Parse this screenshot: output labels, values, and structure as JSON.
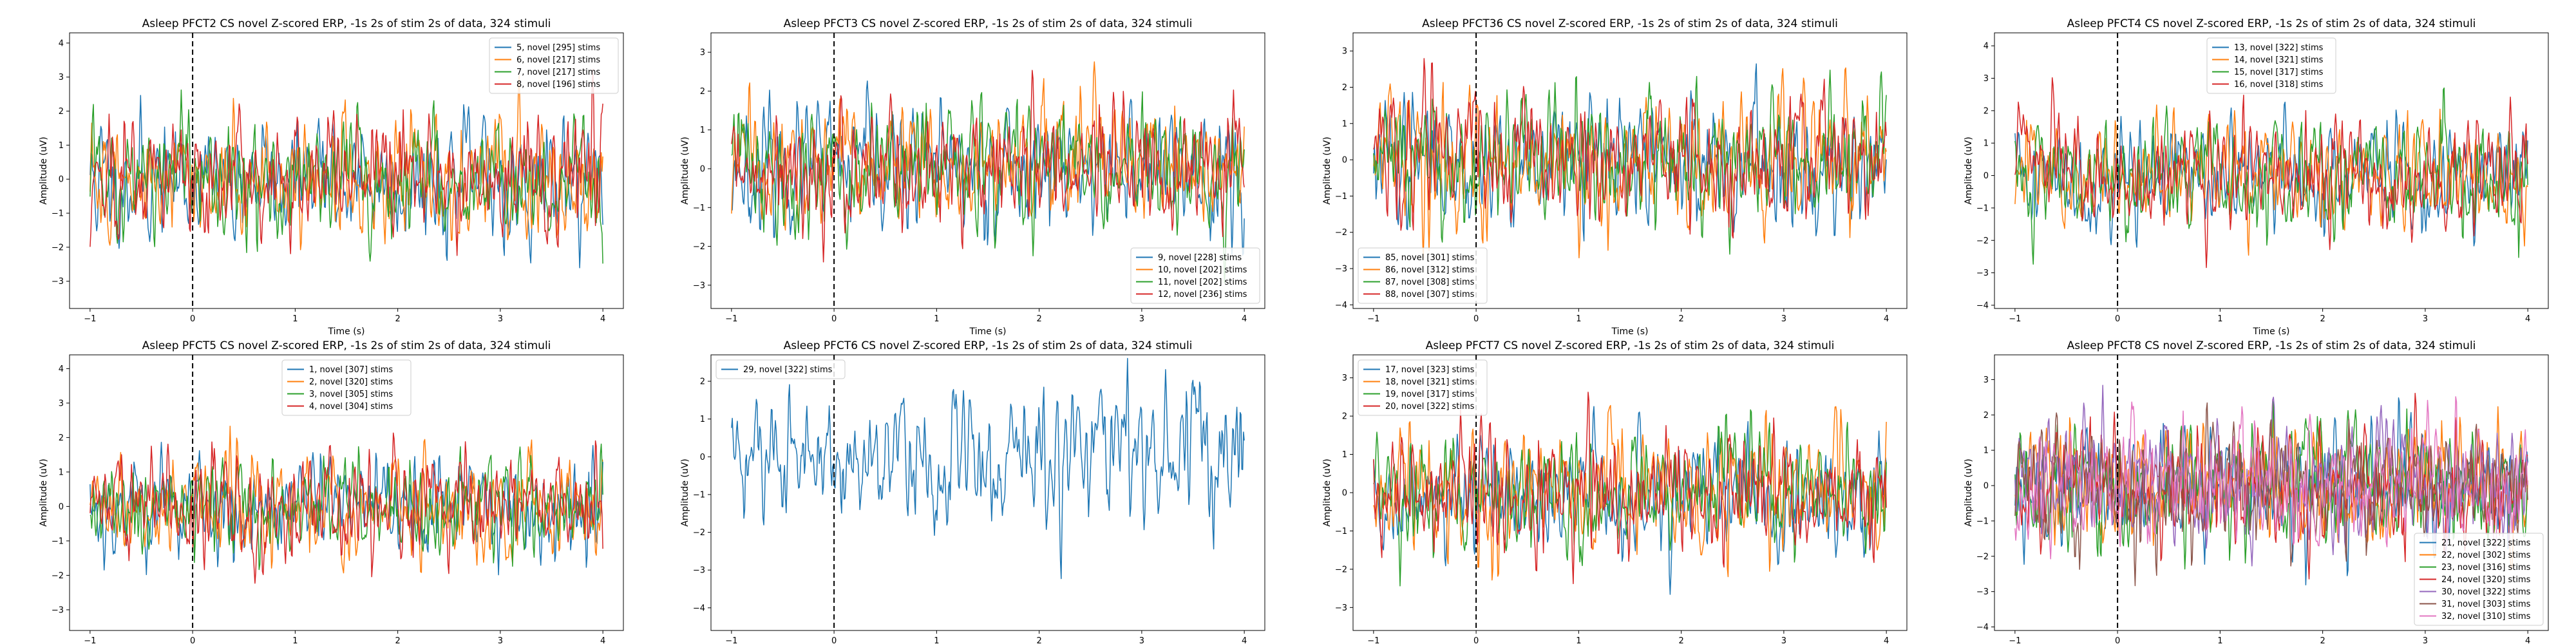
{
  "figure": {
    "background": "#ffffff"
  },
  "chart_data": [
    {
      "type": "line",
      "title": "Asleep PFCT2 CS novel Z-scored ERP, -1s 2s of stim 2s of data, 324 stimuli",
      "xlabel": "Time (s)",
      "ylabel": "Amplitude (uV)",
      "xlim": [
        -1.2,
        4.2
      ],
      "ylim": [
        -3.8,
        4.3
      ],
      "xticks": [
        -1,
        0,
        1,
        2,
        3,
        4
      ],
      "yticks": [
        -3,
        -2,
        -1,
        0,
        1,
        2,
        3,
        4
      ],
      "stim_line_x": 0,
      "grid": false,
      "legend_position": "top-right",
      "amplitude": 1.2,
      "seed": 11,
      "series": [
        {
          "name": "5, novel [295] stims",
          "color": "#1f77b4"
        },
        {
          "name": "6, novel [217] stims",
          "color": "#ff7f0e"
        },
        {
          "name": "7, novel [217] stims",
          "color": "#2ca02c"
        },
        {
          "name": "8, novel [196] stims",
          "color": "#d62728"
        }
      ]
    },
    {
      "type": "line",
      "title": "Asleep PFCT3 CS novel Z-scored ERP, -1s 2s of stim 2s of data, 324 stimuli",
      "xlabel": "Time (s)",
      "ylabel": "Amplitude (uV)",
      "xlim": [
        -1.2,
        4.2
      ],
      "ylim": [
        -3.6,
        3.5
      ],
      "xticks": [
        -1,
        0,
        1,
        2,
        3,
        4
      ],
      "yticks": [
        -3,
        -2,
        -1,
        0,
        1,
        2,
        3
      ],
      "stim_line_x": 0,
      "grid": false,
      "legend_position": "bottom-right",
      "amplitude": 1.1,
      "seed": 23,
      "series": [
        {
          "name": "9, novel [228] stims",
          "color": "#1f77b4"
        },
        {
          "name": "10, novel [202] stims",
          "color": "#ff7f0e"
        },
        {
          "name": "11, novel [202] stims",
          "color": "#2ca02c"
        },
        {
          "name": "12, novel [236] stims",
          "color": "#d62728"
        }
      ]
    },
    {
      "type": "line",
      "title": "Asleep PFCT36 CS novel Z-scored ERP, -1s 2s of stim 2s of data, 324 stimuli",
      "xlabel": "Time (s)",
      "ylabel": "Amplitude (uV)",
      "xlim": [
        -1.2,
        4.2
      ],
      "ylim": [
        -4.1,
        3.5
      ],
      "xticks": [
        -1,
        0,
        1,
        2,
        3,
        4
      ],
      "yticks": [
        -4,
        -3,
        -2,
        -1,
        0,
        1,
        2,
        3
      ],
      "stim_line_x": 0,
      "grid": false,
      "legend_position": "bottom-left",
      "amplitude": 1.2,
      "seed": 37,
      "series": [
        {
          "name": "85, novel [301] stims",
          "color": "#1f77b4"
        },
        {
          "name": "86, novel [312] stims",
          "color": "#ff7f0e"
        },
        {
          "name": "87, novel [308] stims",
          "color": "#2ca02c"
        },
        {
          "name": "88, novel [307] stims",
          "color": "#d62728"
        }
      ]
    },
    {
      "type": "line",
      "title": "Asleep PFCT4 CS novel Z-scored ERP, -1s 2s of stim 2s of data, 324 stimuli",
      "xlabel": "Time (s)",
      "ylabel": "Amplitude (uV)",
      "xlim": [
        -1.2,
        4.2
      ],
      "ylim": [
        -4.1,
        4.4
      ],
      "xticks": [
        -1,
        0,
        1,
        2,
        3,
        4
      ],
      "yticks": [
        -4,
        -3,
        -2,
        -1,
        0,
        1,
        2,
        3,
        4
      ],
      "stim_line_x": 0,
      "grid": false,
      "legend_position": "top-center",
      "amplitude": 1.15,
      "seed": 41,
      "series": [
        {
          "name": "13, novel [322] stims",
          "color": "#1f77b4"
        },
        {
          "name": "14, novel [321] stims",
          "color": "#ff7f0e"
        },
        {
          "name": "15, novel [317] stims",
          "color": "#2ca02c"
        },
        {
          "name": "16, novel [318] stims",
          "color": "#d62728"
        }
      ]
    },
    {
      "type": "line",
      "title": "Asleep PFCT5 CS novel Z-scored ERP, -1s 2s of stim 2s of data, 324 stimuli",
      "xlabel": "Time (s)",
      "ylabel": "Amplitude (uV)",
      "xlim": [
        -1.2,
        4.2
      ],
      "ylim": [
        -3.6,
        4.4
      ],
      "xticks": [
        -1,
        0,
        1,
        2,
        3,
        4
      ],
      "yticks": [
        -3,
        -2,
        -1,
        0,
        1,
        2,
        3,
        4
      ],
      "stim_line_x": 0,
      "grid": false,
      "legend_position": "top-center",
      "amplitude": 1.05,
      "seed": 53,
      "series": [
        {
          "name": "1, novel [307] stims",
          "color": "#1f77b4"
        },
        {
          "name": "2, novel [320] stims",
          "color": "#ff7f0e"
        },
        {
          "name": "3, novel [305] stims",
          "color": "#2ca02c"
        },
        {
          "name": "4, novel [304] stims",
          "color": "#d62728"
        }
      ]
    },
    {
      "type": "line",
      "title": "Asleep PFCT6 CS novel Z-scored ERP, -1s 2s of stim 2s of data, 324 stimuli",
      "xlabel": "Time (s)",
      "ylabel": "Amplitude (uV)",
      "xlim": [
        -1.2,
        4.2
      ],
      "ylim": [
        -4.6,
        2.7
      ],
      "xticks": [
        -1,
        0,
        1,
        2,
        3,
        4
      ],
      "yticks": [
        -4,
        -3,
        -2,
        -1,
        0,
        1,
        2
      ],
      "stim_line_x": 0,
      "grid": false,
      "legend_position": "top-left",
      "amplitude": 1.25,
      "seed": 61,
      "series": [
        {
          "name": "29, novel [322] stims",
          "color": "#1f77b4"
        }
      ]
    },
    {
      "type": "line",
      "title": "Asleep PFCT7 CS novel Z-scored ERP, -1s 2s of stim 2s of data, 324 stimuli",
      "xlabel": "Time (s)",
      "ylabel": "Amplitude (uV)",
      "xlim": [
        -1.2,
        4.2
      ],
      "ylim": [
        -3.6,
        3.6
      ],
      "xticks": [
        -1,
        0,
        1,
        2,
        3,
        4
      ],
      "yticks": [
        -3,
        -2,
        -1,
        0,
        1,
        2,
        3
      ],
      "stim_line_x": 0,
      "grid": false,
      "legend_position": "top-left",
      "amplitude": 1.1,
      "seed": 73,
      "series": [
        {
          "name": "17, novel [323] stims",
          "color": "#1f77b4"
        },
        {
          "name": "18, novel [321] stims",
          "color": "#ff7f0e"
        },
        {
          "name": "19, novel [317] stims",
          "color": "#2ca02c"
        },
        {
          "name": "20, novel [322] stims",
          "color": "#d62728"
        }
      ]
    },
    {
      "type": "line",
      "title": "Asleep PFCT8 CS novel Z-scored ERP, -1s 2s of stim 2s of data, 324 stimuli",
      "xlabel": "Time (s)",
      "ylabel": "Amplitude (uV)",
      "xlim": [
        -1.2,
        4.2
      ],
      "ylim": [
        -4.1,
        3.7
      ],
      "xticks": [
        -1,
        0,
        1,
        2,
        3,
        4
      ],
      "yticks": [
        -4,
        -3,
        -2,
        -1,
        0,
        1,
        2,
        3
      ],
      "stim_line_x": 0,
      "grid": false,
      "legend_position": "bottom-right",
      "amplitude": 1.2,
      "seed": 89,
      "series": [
        {
          "name": "21, novel [322] stims",
          "color": "#1f77b4"
        },
        {
          "name": "22, novel [302] stims",
          "color": "#ff7f0e"
        },
        {
          "name": "23, novel [316] stims",
          "color": "#2ca02c"
        },
        {
          "name": "24, novel [320] stims",
          "color": "#d62728"
        },
        {
          "name": "30, novel [322] stims",
          "color": "#9467bd"
        },
        {
          "name": "31, novel [303] stims",
          "color": "#8c564b"
        },
        {
          "name": "32, novel [310] stims",
          "color": "#e377c2"
        }
      ]
    }
  ]
}
